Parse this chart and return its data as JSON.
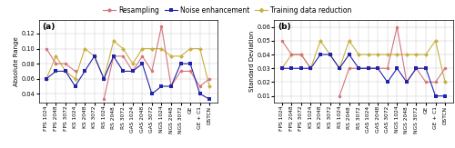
{
  "categories": [
    "FPS 1024",
    "FPS 2048",
    "FPS 3072",
    "KS 1024",
    "KS 2048",
    "KS 3072",
    "RS 1024",
    "RS 2048",
    "RS 3072",
    "GAS 1024",
    "GAS 2048",
    "GAS 3072",
    "NGS 1024",
    "NGS 2048",
    "NGS 3072",
    "GE",
    "GE + C1",
    "DSTCN"
  ],
  "resampling_a": [
    0.1,
    0.08,
    0.08,
    0.07,
    null,
    null,
    0.033,
    0.09,
    0.09,
    0.07,
    0.09,
    0.07,
    0.13,
    0.05,
    0.07,
    0.07,
    0.05,
    0.06
  ],
  "noise_a": [
    0.06,
    0.07,
    0.07,
    0.05,
    0.07,
    0.09,
    0.06,
    0.09,
    0.07,
    0.07,
    0.08,
    0.04,
    0.05,
    0.05,
    0.08,
    0.08,
    0.04,
    0.033
  ],
  "training_a": [
    0.06,
    0.09,
    0.07,
    0.06,
    0.1,
    0.09,
    0.06,
    0.11,
    0.1,
    0.08,
    0.1,
    0.1,
    0.1,
    0.09,
    0.09,
    0.1,
    0.1,
    0.05
  ],
  "resampling_b": [
    0.05,
    0.04,
    0.04,
    0.03,
    null,
    null,
    0.01,
    0.03,
    0.03,
    0.03,
    0.03,
    0.03,
    0.06,
    0.02,
    0.03,
    0.02,
    0.02,
    0.03
  ],
  "noise_b": [
    0.03,
    0.03,
    0.03,
    0.03,
    0.04,
    0.04,
    0.03,
    0.04,
    0.03,
    0.03,
    0.03,
    0.02,
    0.03,
    0.02,
    0.03,
    0.03,
    0.01,
    0.01
  ],
  "training_b": [
    0.03,
    0.04,
    0.04,
    0.03,
    0.05,
    0.04,
    0.03,
    0.05,
    0.04,
    0.04,
    0.04,
    0.04,
    0.04,
    0.04,
    0.04,
    0.04,
    0.05,
    0.02
  ],
  "color_resampling": "#d4737b",
  "color_noise": "#2222aa",
  "color_training": "#c8b040",
  "ylabel_a": "Absolute Range",
  "ylabel_b": "Standard Deviation",
  "ylim_a": [
    0.028,
    0.138
  ],
  "ylim_b": [
    0.005,
    0.065
  ],
  "yticks_a": [
    0.04,
    0.06,
    0.08,
    0.1,
    0.12
  ],
  "yticks_b": [
    0.01,
    0.02,
    0.03,
    0.04,
    0.05,
    0.06
  ],
  "label_a": "(a)",
  "label_b": "(b)",
  "legend_labels": [
    "Resampling",
    "Noise enhancement",
    "Training data reduction"
  ],
  "marker_res": "o",
  "marker_noi": "s",
  "marker_tra": "D",
  "markersize": 2.5,
  "linewidth": 0.8
}
